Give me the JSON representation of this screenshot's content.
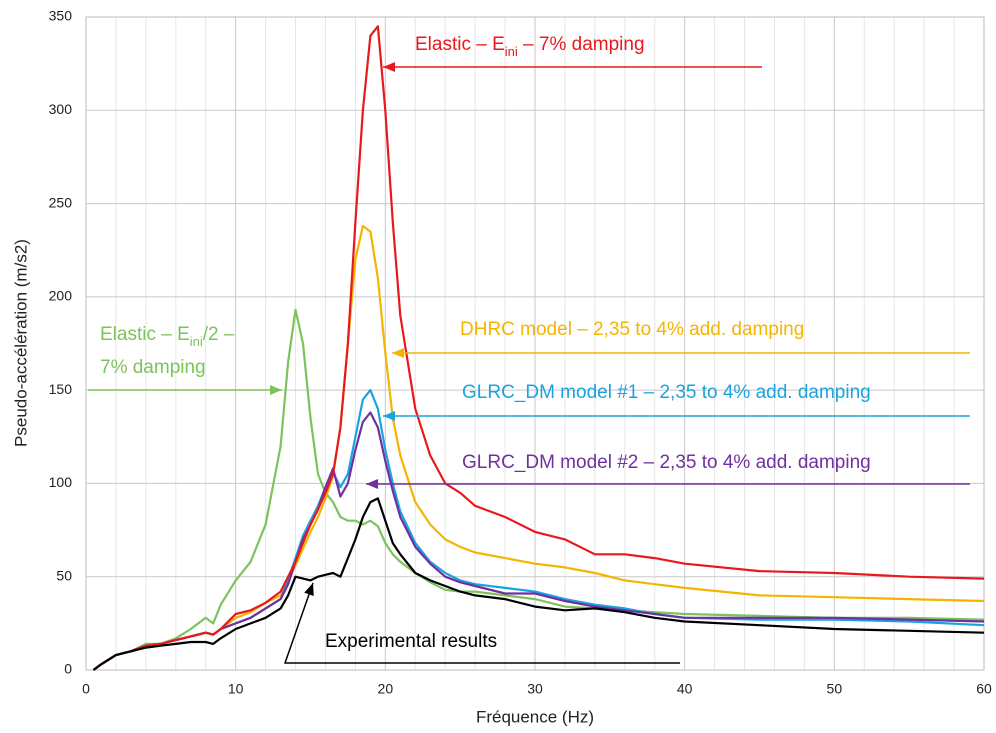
{
  "chart_data": {
    "type": "line",
    "x_label": "Fréquence (Hz)",
    "y_label": "Pseudo-accélération (m/s2)",
    "xlim": [
      0,
      60
    ],
    "ylim": [
      0,
      350
    ],
    "xticks": [
      0,
      10,
      20,
      30,
      40,
      50,
      60
    ],
    "yticks": [
      0,
      50,
      100,
      150,
      200,
      250,
      300,
      350
    ],
    "x_minor_grid": [
      2,
      4,
      6,
      8,
      12,
      14,
      16,
      18,
      22,
      24,
      26,
      28,
      32,
      34,
      36,
      38,
      42,
      44,
      46,
      48,
      52,
      54,
      56,
      58
    ],
    "grid": true,
    "x": [
      0.5,
      1,
      2,
      3,
      4,
      5,
      6,
      7,
      8,
      8.5,
      9,
      10,
      11,
      12,
      13,
      13.5,
      14,
      14.5,
      15,
      15.5,
      16,
      16.5,
      17,
      17.5,
      18,
      18.5,
      19,
      19.5,
      20,
      20.5,
      21,
      22,
      23,
      24,
      25,
      26,
      28,
      30,
      32,
      34,
      36,
      38,
      40,
      45,
      50,
      55,
      60
    ],
    "series": [
      {
        "color": "#7cc35a",
        "values": [
          0,
          3,
          8,
          10,
          14,
          14,
          17,
          22,
          28,
          25,
          35,
          48,
          58,
          78,
          120,
          165,
          193,
          175,
          135,
          105,
          95,
          90,
          82,
          80,
          80,
          78,
          80,
          77,
          68,
          62,
          58,
          52,
          47,
          43,
          42,
          42,
          40,
          38,
          34,
          33,
          32,
          31,
          30,
          29,
          28,
          28,
          27
        ]
      },
      {
        "color": "#f5b400",
        "values": [
          0,
          3,
          8,
          10,
          13,
          14,
          16,
          18,
          20,
          19,
          22,
          28,
          31,
          36,
          40,
          48,
          56,
          65,
          74,
          82,
          92,
          104,
          130,
          175,
          220,
          238,
          235,
          210,
          170,
          135,
          115,
          90,
          78,
          70,
          66,
          63,
          60,
          57,
          55,
          52,
          48,
          46,
          44,
          40,
          39,
          38,
          37
        ]
      },
      {
        "color": "#1aa3e0",
        "values": [
          0,
          3,
          8,
          10,
          13,
          14,
          16,
          18,
          20,
          19,
          22,
          25,
          28,
          33,
          38,
          48,
          60,
          72,
          80,
          88,
          98,
          106,
          98,
          105,
          125,
          145,
          150,
          140,
          118,
          100,
          85,
          68,
          58,
          52,
          48,
          46,
          44,
          42,
          38,
          35,
          33,
          30,
          28,
          27,
          27,
          26,
          24
        ]
      },
      {
        "color": "#7030a0",
        "values": [
          0,
          3,
          8,
          10,
          13,
          14,
          16,
          18,
          20,
          19,
          22,
          25,
          28,
          33,
          38,
          46,
          58,
          70,
          78,
          86,
          98,
          108,
          93,
          100,
          118,
          133,
          138,
          130,
          112,
          96,
          82,
          66,
          57,
          50,
          47,
          45,
          41,
          41,
          37,
          34,
          32,
          30,
          28,
          28,
          28,
          27,
          26
        ]
      },
      {
        "color": "#e8191c",
        "values": [
          0,
          3,
          8,
          10,
          13,
          14,
          16,
          18,
          20,
          19,
          22,
          30,
          32,
          36,
          42,
          50,
          58,
          68,
          78,
          86,
          95,
          105,
          130,
          175,
          240,
          300,
          340,
          345,
          300,
          240,
          190,
          140,
          115,
          100,
          95,
          88,
          82,
          74,
          70,
          62,
          62,
          60,
          57,
          53,
          52,
          50,
          49
        ]
      },
      {
        "color": "#000000",
        "values": [
          0,
          3,
          8,
          10,
          12,
          13,
          14,
          15,
          15,
          14,
          17,
          22,
          25,
          28,
          33,
          40,
          50,
          49,
          48,
          50,
          51,
          52,
          50,
          60,
          70,
          82,
          90,
          92,
          80,
          68,
          62,
          52,
          48,
          45,
          42,
          40,
          38,
          34,
          32,
          33,
          31,
          28,
          26,
          24,
          22,
          21,
          20
        ]
      }
    ],
    "annotations": [
      {
        "color": "#e8191c",
        "lines": [
          [
            "Elastic – E",
            "ini",
            " – 7% damping"
          ]
        ]
      },
      {
        "color": "#f5b400",
        "lines": [
          [
            "DHRC model – 2,35 to 4% add. damping"
          ]
        ]
      },
      {
        "color": "#1aa3e0",
        "lines": [
          [
            "GLRC_DM model #1 – 2,35 to 4% add. damping"
          ]
        ]
      },
      {
        "color": "#7030a0",
        "lines": [
          [
            "GLRC_DM model #2 – 2,35 to 4% add. damping"
          ]
        ]
      },
      {
        "color": "#7cc35a",
        "lines": [
          [
            "Elastic – E",
            "ini",
            "/2 –"
          ],
          [
            "7% damping"
          ]
        ]
      },
      {
        "color": "#000000",
        "lines": [
          [
            "Experimental results"
          ]
        ]
      }
    ]
  }
}
